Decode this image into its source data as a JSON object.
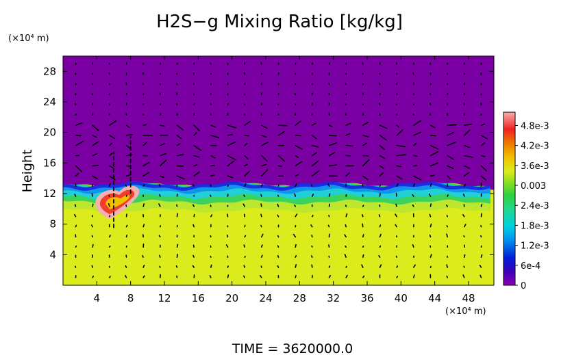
{
  "chart_data": {
    "type": "heatmap",
    "title": "H2S−g Mixing Ratio [kg/kg]",
    "ylabel": "Height",
    "y_unit": "(×10⁴ m)",
    "x_unit": "(×10⁴ m)",
    "x_ticks": [
      4,
      8,
      12,
      16,
      20,
      24,
      28,
      32,
      36,
      40,
      44,
      48
    ],
    "y_ticks": [
      4,
      8,
      12,
      16,
      20,
      24,
      28
    ],
    "xlim": [
      0,
      51
    ],
    "ylim": [
      0,
      30
    ],
    "colorbar": {
      "min": 0,
      "max": 0.0052,
      "labels": [
        {
          "value": 0.0048,
          "text": "4.8e-3"
        },
        {
          "value": 0.0042,
          "text": "4.2e-3"
        },
        {
          "value": 0.0036,
          "text": "3.6e-3"
        },
        {
          "value": 0.003,
          "text": "0.003"
        },
        {
          "value": 0.0024,
          "text": "2.4e-3"
        },
        {
          "value": 0.0018,
          "text": "1.8e-3"
        },
        {
          "value": 0.0012,
          "text": "1.2e-3"
        },
        {
          "value": 0.0006,
          "text": "6e-4"
        },
        {
          "value": 0,
          "text": "0"
        }
      ]
    },
    "field": {
      "lower_layer_value": 0.0032,
      "upper_layer_value": 0,
      "interface_height": 12.5,
      "plume_center": [
        6,
        11
      ],
      "plume_peak": 0.0052
    },
    "time_label": "TIME  =  3620000.0"
  },
  "colors": {
    "background": "#ffffff",
    "upper_layer": "#7a00a4",
    "lower_layer": "#dceb1c",
    "interface_blue": "#1a2ae0",
    "interface_cyan": "#1fd0dc",
    "interface_green": "#34d25e",
    "plume": "#f23d2a",
    "arrows": "#000000"
  }
}
